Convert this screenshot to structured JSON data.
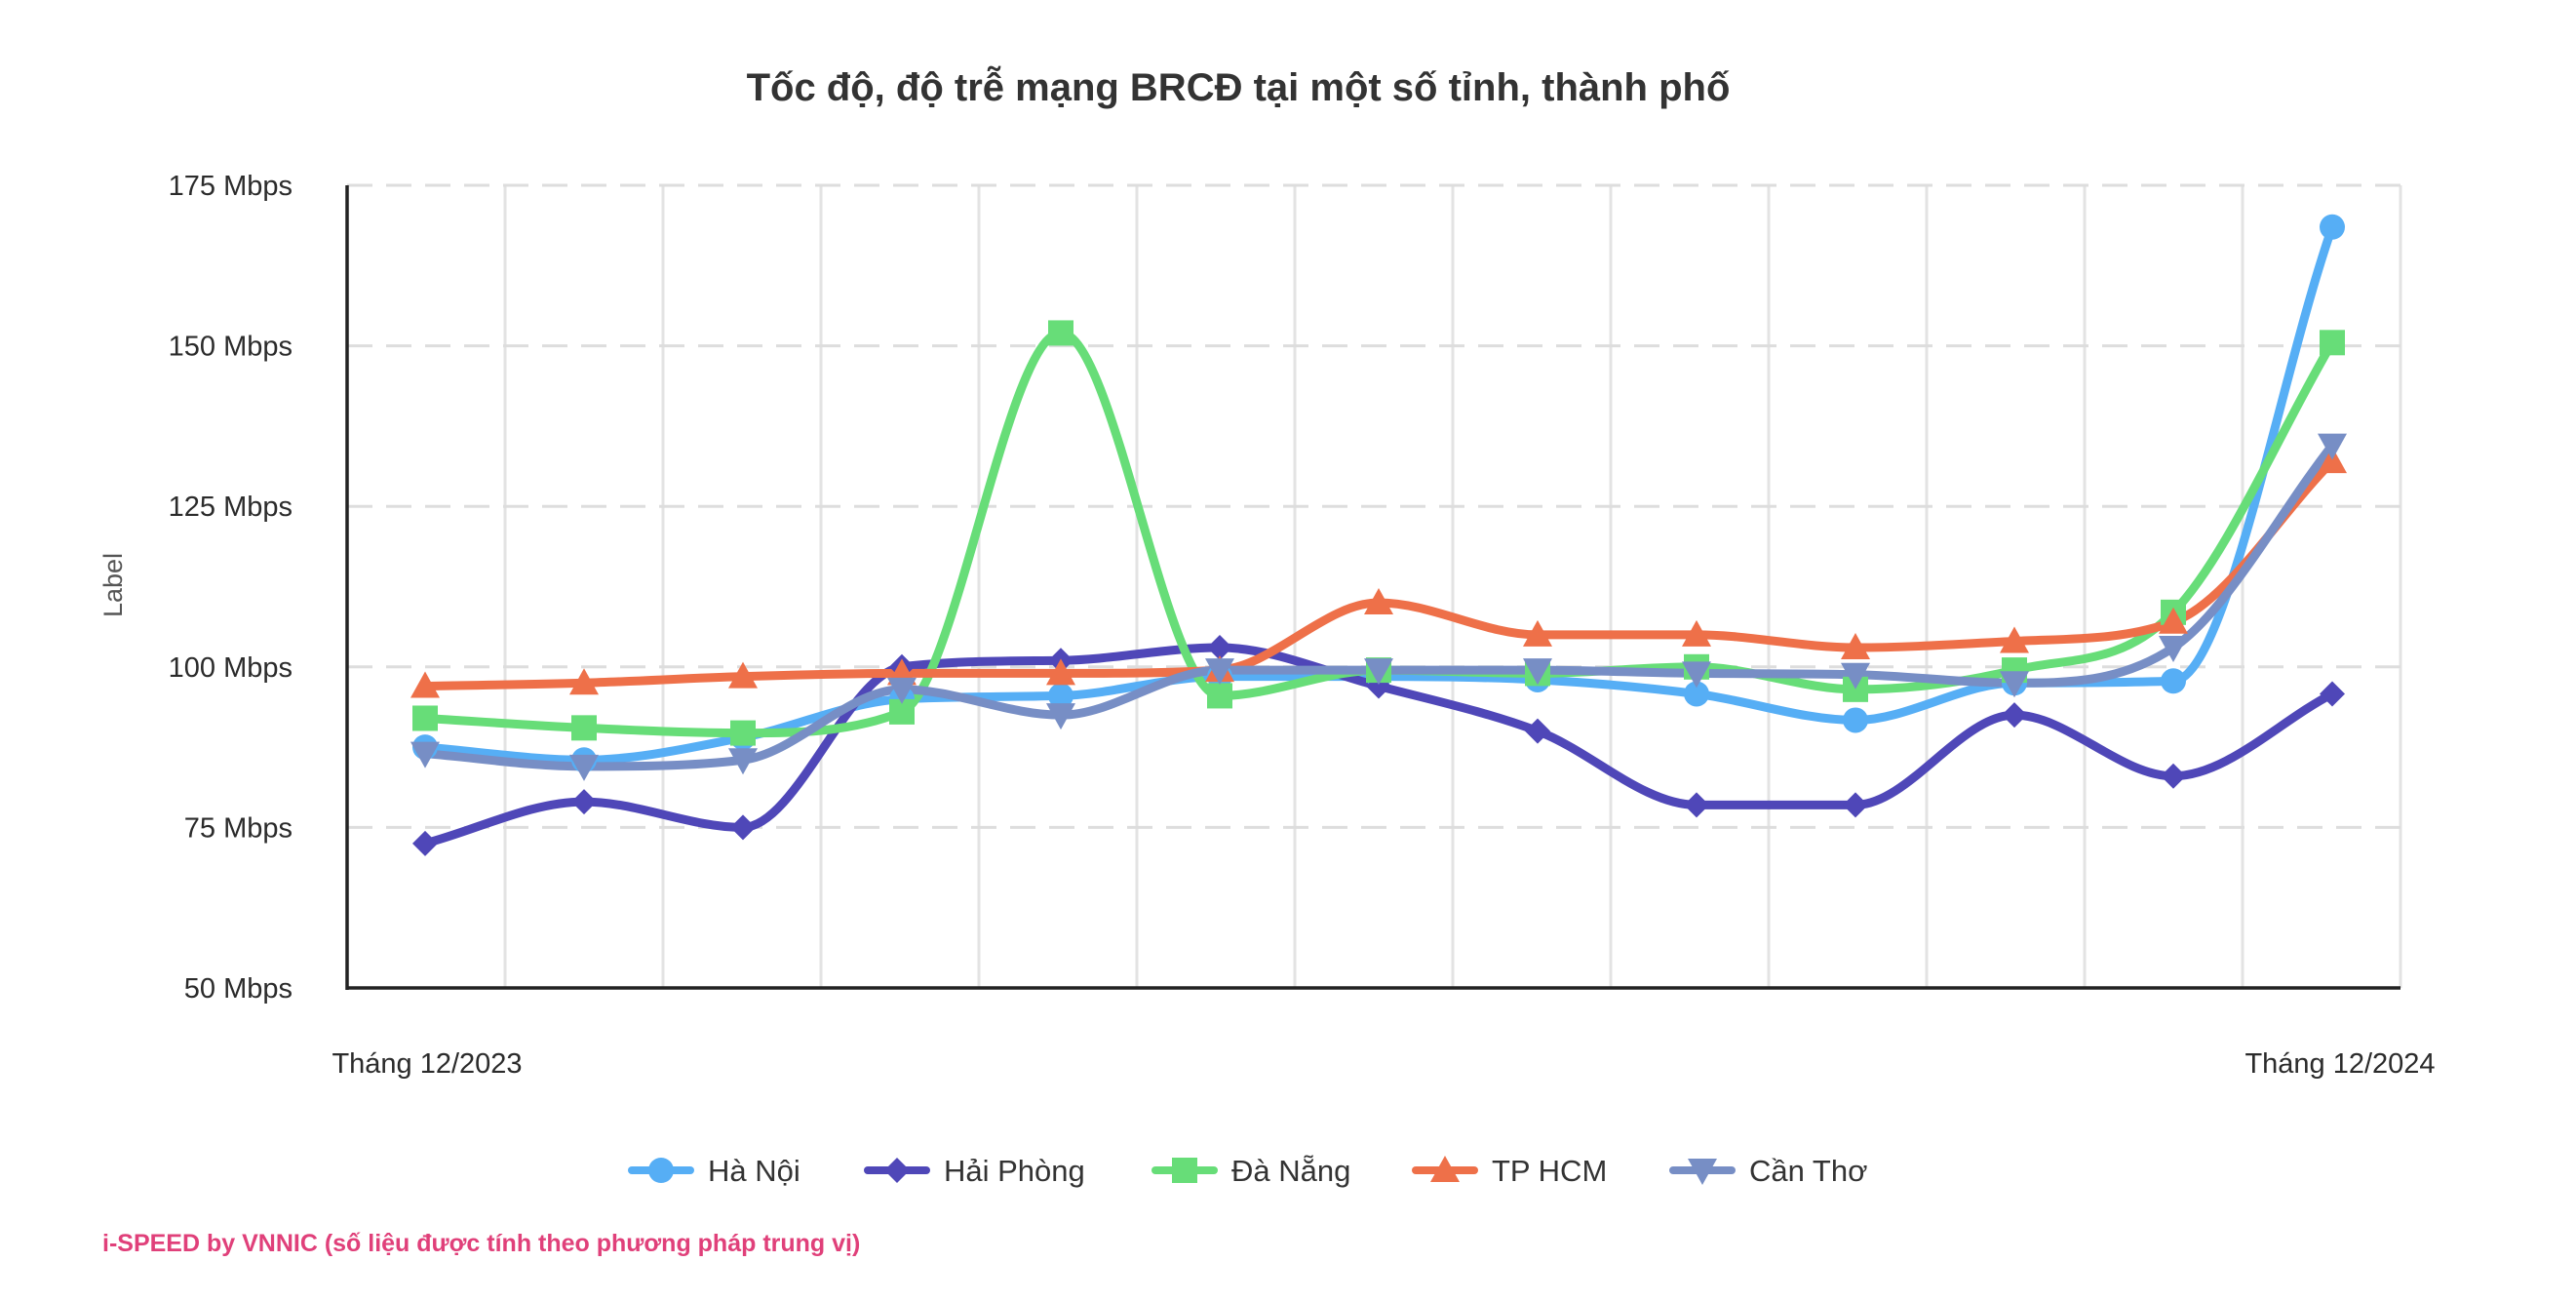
{
  "chart_data": {
    "type": "line",
    "title": "Tốc độ, độ trễ mạng BRCĐ tại một số tỉnh, thành phố",
    "ylabel": "Label",
    "xlabel": "",
    "ylim": [
      50,
      175
    ],
    "y_ticks": [
      "50 Mbps",
      "75 Mbps",
      "100 Mbps",
      "125 Mbps",
      "150 Mbps",
      "175 Mbps"
    ],
    "x_tick_labels": [
      "Tháng 12/2023",
      "Tháng 12/2024"
    ],
    "x": [
      1,
      2,
      3,
      4,
      5,
      6,
      7,
      8,
      9,
      10,
      11,
      12,
      13
    ],
    "grid": true,
    "legend_position": "bottom",
    "series": [
      {
        "name": "Hà Nội",
        "color": "#56aef5",
        "marker": "circle",
        "values": [
          87.5,
          85.5,
          89,
          95,
          95.5,
          98.5,
          98.5,
          98,
          95.8,
          91.7,
          97.5,
          97.8,
          168.5
        ]
      },
      {
        "name": "Hải Phòng",
        "color": "#4f47b8",
        "marker": "diamond",
        "values": [
          72.5,
          79,
          75,
          100,
          101,
          103,
          97,
          90,
          78.5,
          78.5,
          92.5,
          83,
          95.8
        ]
      },
      {
        "name": "Đà Nẵng",
        "color": "#67dd78",
        "marker": "square",
        "values": [
          92,
          90.5,
          89.7,
          93,
          152,
          95.5,
          99.5,
          99,
          100,
          96.5,
          99.5,
          108.5,
          150.5
        ]
      },
      {
        "name": "TP HCM",
        "color": "#ee7049",
        "marker": "triangle",
        "values": [
          97,
          97.5,
          98.5,
          99,
          99,
          99.5,
          110,
          105,
          105,
          103,
          104,
          107,
          132
        ]
      },
      {
        "name": "Cần Thơ",
        "color": "#778ec5",
        "marker": "triangle-down",
        "values": [
          86.5,
          84.5,
          85.5,
          96.5,
          92.5,
          99.5,
          99.5,
          99.5,
          99,
          98.8,
          97.5,
          103,
          134.5
        ]
      }
    ]
  },
  "footer": {
    "credit": "i-SPEED by VNNIC (số liệu được tính theo phương pháp trung vị)"
  }
}
